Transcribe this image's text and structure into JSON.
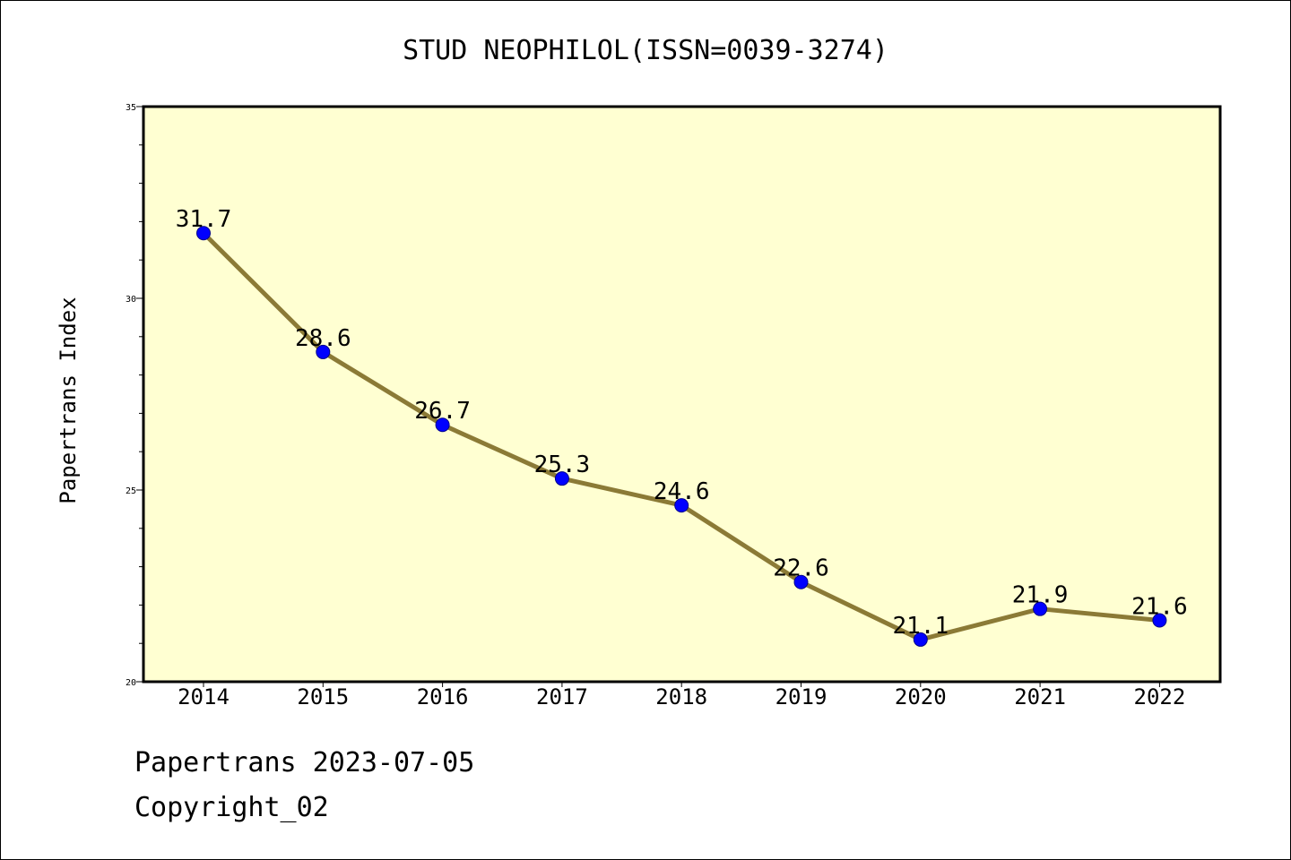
{
  "footer": {
    "line1": "Papertrans 2023-07-05",
    "line2": "Copyright_02"
  },
  "chart_data": {
    "type": "line",
    "title": "STUD NEOPHILOL(ISSN=0039-3274)",
    "xlabel": "",
    "ylabel": "Papertrans Index",
    "categories": [
      "2014",
      "2015",
      "2016",
      "2017",
      "2018",
      "2019",
      "2020",
      "2021",
      "2022"
    ],
    "series": [
      {
        "values": [
          31.7,
          28.6,
          26.7,
          25.3,
          24.6,
          22.6,
          21.1,
          21.9,
          21.6
        ]
      }
    ],
    "data_labels": [
      "31.7",
      "28.6",
      "26.7",
      "25.3",
      "24.6",
      "22.6",
      "21.1",
      "21.9",
      "21.6"
    ],
    "ylim": [
      20,
      35
    ],
    "yticks": [
      20,
      25,
      30,
      35
    ],
    "grid": false,
    "colors": {
      "plot_background": "#ffffd2",
      "line": "#8b7a36",
      "marker": "#0000ff"
    }
  }
}
